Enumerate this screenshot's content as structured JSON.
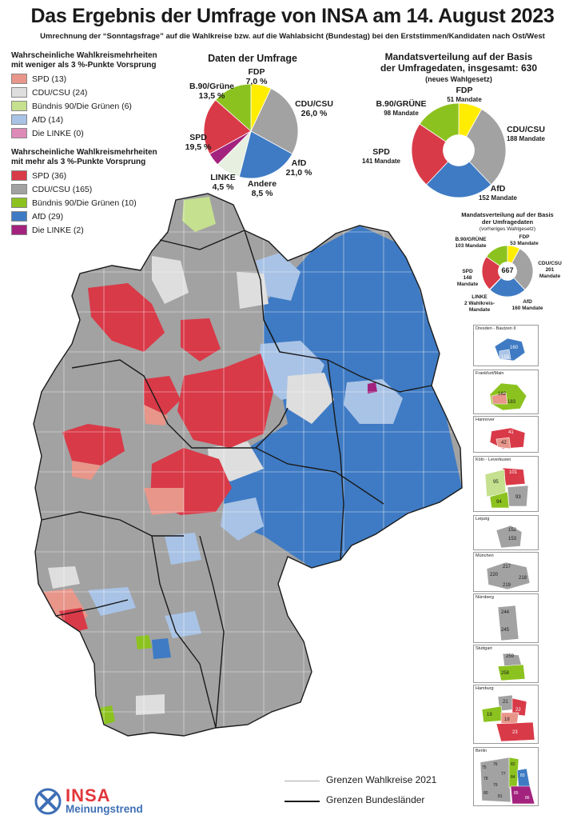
{
  "header": {
    "title": "Das Ergebnis der Umfrage von INSA am 14. August 2023",
    "subtitle": "Umrechnung der “Sonntagsfrage” auf die Wahlkreise bzw. auf die Wahlabsicht (Bundestag) bei den Erststimmen/Kandidaten nach Ost/West"
  },
  "legend_weak": {
    "heading_line1": "Wahrscheinliche Wahlkreismehrheiten",
    "heading_line2": "mit weniger als 3 %-Punkte Vorsprung",
    "items": [
      {
        "label": "SPD (13)",
        "color": "#e8968a"
      },
      {
        "label": "CDU/CSU (24)",
        "color": "#dedede"
      },
      {
        "label": "Bündnis 90/Die Grünen (6)",
        "color": "#c5e08e"
      },
      {
        "label": "AfD (14)",
        "color": "#a9c3e6"
      },
      {
        "label": "Die LINKE (0)",
        "color": "#dd8ab8"
      }
    ]
  },
  "legend_strong": {
    "heading_line1": "Wahrscheinliche Wahlkreismehrheiten",
    "heading_line2": "mit mehr als 3 %-Punkte Vorsprung",
    "items": [
      {
        "label": "SPD (36)",
        "color": "#d93a48"
      },
      {
        "label": "CDU/CSU (165)",
        "color": "#a2a2a2"
      },
      {
        "label": "Bündnis 90/Die Grünen (10)",
        "color": "#8cc21f"
      },
      {
        "label": "AfD (29)",
        "color": "#3f7bc4"
      },
      {
        "label": "Die LINKE (2)",
        "color": "#a3227e"
      }
    ]
  },
  "survey_pie": {
    "title": "Daten der Umfrage",
    "slices": [
      {
        "party": "FDP",
        "value": "7,0 %",
        "pct": 7.0,
        "color": "#ffed00"
      },
      {
        "party": "CDU/CSU",
        "value": "26,0 %",
        "pct": 26.0,
        "color": "#a2a2a2"
      },
      {
        "party": "AfD",
        "value": "21,0 %",
        "pct": 21.0,
        "color": "#3f7bc4"
      },
      {
        "party": "Andere",
        "value": "8,5 %",
        "pct": 8.5,
        "color": "#e6efe0"
      },
      {
        "party": "LINKE",
        "value": "4,5 %",
        "pct": 4.5,
        "color": "#a3227e"
      },
      {
        "party": "SPD",
        "value": "19,5 %",
        "pct": 19.5,
        "color": "#d93a48"
      },
      {
        "party": "B.90/Grüne",
        "value": "13,5 %",
        "pct": 13.5,
        "color": "#8cc21f"
      }
    ]
  },
  "seat_donut_new": {
    "title_line1": "Mandatsverteilung auf der Basis",
    "title_line2": "der Umfragedaten, insgesamt: 630",
    "title_line3": "(neues Wahlgesetz)",
    "slices": [
      {
        "party": "FDP",
        "value": "51 Mandate",
        "seats": 51,
        "color": "#ffed00"
      },
      {
        "party": "CDU/CSU",
        "value": "188 Mandate",
        "seats": 188,
        "color": "#a2a2a2"
      },
      {
        "party": "AfD",
        "value": "152 Mandate",
        "seats": 152,
        "color": "#3f7bc4"
      },
      {
        "party": "SPD",
        "value": "141 Mandate",
        "seats": 141,
        "color": "#d93a48"
      },
      {
        "party": "B.90/GRÜNE",
        "value": "98 Mandate",
        "seats": 98,
        "color": "#8cc21f"
      }
    ]
  },
  "seat_donut_old": {
    "title_line1": "Mandatsverteilung auf der Basis",
    "title_line2": "der Umfragedaten",
    "title_line3": "(vorheriges Wahlgesetz)",
    "total": "667",
    "slices": [
      {
        "party": "FDP",
        "value": "53 Mandate",
        "seats": 53,
        "color": "#ffed00"
      },
      {
        "party": "CDU/CSU",
        "value": "201 Mandate",
        "seats": 201,
        "color": "#a2a2a2"
      },
      {
        "party": "AfD",
        "value": "160 Mandate",
        "seats": 160,
        "color": "#3f7bc4"
      },
      {
        "party": "LINKE",
        "value": "2 Wahlkreis-Mandate",
        "seats": 2,
        "color": "#a3227e"
      },
      {
        "party": "SPD",
        "value": "148 Mandate",
        "seats": 148,
        "color": "#d93a48"
      },
      {
        "party": "B.90/GRÜNE",
        "value": "103 Mandate",
        "seats": 103,
        "color": "#8cc21f"
      }
    ]
  },
  "insets": [
    {
      "name": "Dresden - Bautzen II",
      "numbers": [
        "160",
        "159"
      ]
    },
    {
      "name": "Frankfurt/Main",
      "numbers": [
        "182",
        "183"
      ]
    },
    {
      "name": "Hannover",
      "numbers": [
        "41",
        "42"
      ]
    },
    {
      "name": "Köln - Leverkusen",
      "numbers": [
        "101",
        "95",
        "94",
        "93"
      ]
    },
    {
      "name": "Leipzig",
      "numbers": [
        "152",
        "153"
      ]
    },
    {
      "name": "München",
      "numbers": [
        "217",
        "220",
        "218",
        "219"
      ]
    },
    {
      "name": "Nürnberg",
      "numbers": [
        "244",
        "245"
      ]
    },
    {
      "name": "Stuttgart",
      "numbers": [
        "259",
        "258"
      ]
    },
    {
      "name": "Hamburg",
      "numbers": [
        "21",
        "22",
        "19",
        "18",
        "23"
      ]
    },
    {
      "name": "Berlin",
      "numbers": [
        "75",
        "76",
        "77",
        "78",
        "79",
        "80",
        "81",
        "82",
        "83",
        "84",
        "85",
        "86"
      ]
    }
  ],
  "map_legend": {
    "wahlkreise": "Grenzen Wahlkreise 2021",
    "bundeslaender": "Grenzen Bundesländer"
  },
  "logo": {
    "brand": "INSA",
    "tagline": "Meinungstrend"
  }
}
